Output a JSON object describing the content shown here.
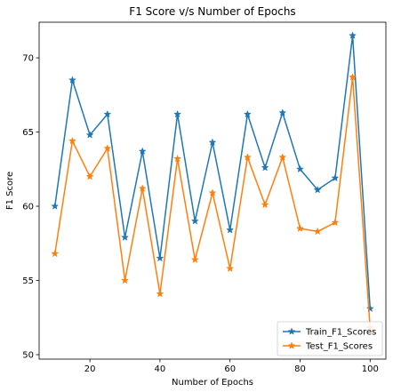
{
  "chart_data": {
    "type": "line",
    "title": "F1 Score v/s Number of Epochs",
    "xlabel": "Number of Epochs",
    "ylabel": "F1 Score",
    "xlim": [
      5.5,
      104.5
    ],
    "ylim": [
      49.7,
      72.4
    ],
    "xticks": [
      20,
      40,
      60,
      80,
      100
    ],
    "yticks": [
      50,
      55,
      60,
      65,
      70
    ],
    "grid": false,
    "legend_position": "lower-right",
    "x": [
      10,
      15,
      20,
      25,
      30,
      35,
      40,
      45,
      50,
      55,
      60,
      65,
      70,
      75,
      80,
      85,
      90,
      95,
      100
    ],
    "series": [
      {
        "name": "Train_F1_Scores",
        "color": "#1f77b4",
        "marker": "star",
        "values": [
          60.0,
          68.5,
          64.8,
          66.2,
          57.9,
          63.7,
          56.5,
          66.2,
          59.0,
          64.3,
          58.4,
          66.2,
          62.6,
          66.3,
          62.5,
          61.1,
          61.9,
          71.5,
          53.1
        ]
      },
      {
        "name": "Test_F1_Scores",
        "color": "#ff7f0e",
        "marker": "star",
        "values": [
          56.8,
          64.4,
          62.0,
          63.9,
          55.0,
          61.2,
          54.1,
          63.2,
          56.4,
          60.9,
          55.8,
          63.3,
          60.1,
          63.3,
          58.5,
          58.3,
          58.9,
          68.7,
          51.8
        ]
      }
    ]
  }
}
